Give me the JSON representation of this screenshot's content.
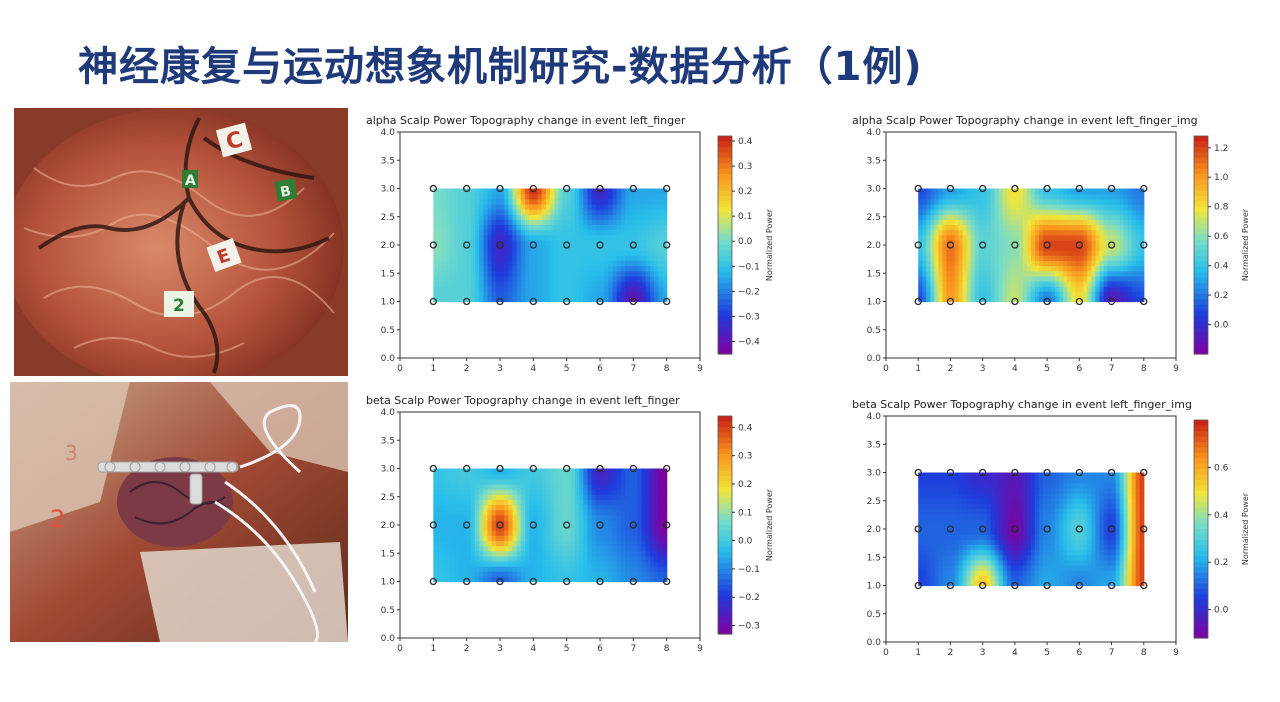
{
  "slide": {
    "title": "神经康复与运动想象机制研究-数据分析（1例)"
  },
  "photos": {
    "top": {
      "name": "brain-surface-photo",
      "labels": [
        "C",
        "A",
        "B",
        "E",
        "2"
      ]
    },
    "bottom": {
      "name": "electrode-grid-photo",
      "labels": [
        "2",
        "3"
      ]
    }
  },
  "colors": {
    "title": "#1f3a7a",
    "electrode_marker": "#2b2b2b",
    "colormap": "jet"
  },
  "chart_data": [
    {
      "type": "heatmap",
      "title": "alpha Scalp Power Topography change in event left_finger",
      "xlim": [
        0,
        9
      ],
      "ylim": [
        0,
        4
      ],
      "xticks": [
        "0",
        "1",
        "2",
        "3",
        "4",
        "5",
        "6",
        "7",
        "8",
        "9"
      ],
      "yticks": [
        "0.0",
        "0.5",
        "1.0",
        "1.5",
        "2.0",
        "2.5",
        "3.0",
        "3.5",
        "4.0"
      ],
      "electrodes": {
        "x": [
          1,
          2,
          3,
          4,
          5,
          6,
          7,
          8
        ],
        "y": [
          1,
          2,
          3
        ]
      },
      "colorbar": {
        "label": "Normalized Power",
        "range": [
          -0.45,
          0.42
        ],
        "ticks": [
          "0.4",
          "0.3",
          "0.2",
          "0.1",
          "0.0",
          "-0.1",
          "-0.2",
          "-0.3",
          "-0.4"
        ]
      },
      "values": [
        [
          -0.05,
          -0.05,
          -0.25,
          -0.15,
          -0.1,
          -0.15,
          -0.4,
          -0.15
        ],
        [
          0.02,
          -0.05,
          -0.35,
          -0.15,
          -0.1,
          -0.1,
          -0.1,
          -0.05
        ],
        [
          0.0,
          -0.05,
          -0.15,
          0.4,
          -0.05,
          -0.35,
          -0.15,
          -0.15
        ]
      ]
    },
    {
      "type": "heatmap",
      "title": "alpha Scalp Power Topography change in event left_finger_img",
      "xlim": [
        0,
        9
      ],
      "ylim": [
        0,
        4
      ],
      "xticks": [
        "0",
        "1",
        "2",
        "3",
        "4",
        "5",
        "6",
        "7",
        "8",
        "9"
      ],
      "yticks": [
        "0.0",
        "0.5",
        "1.0",
        "1.5",
        "2.0",
        "2.5",
        "3.0",
        "3.5",
        "4.0"
      ],
      "electrodes": {
        "x": [
          1,
          2,
          3,
          4,
          5,
          6,
          7,
          8
        ],
        "y": [
          1,
          2,
          3
        ]
      },
      "colorbar": {
        "label": "Normalized Power",
        "range": [
          -0.2,
          1.28
        ],
        "ticks": [
          "1.2",
          "1.0",
          "0.8",
          "0.6",
          "0.4",
          "0.2",
          "0.0"
        ]
      },
      "values": [
        [
          0.1,
          1.0,
          0.4,
          0.7,
          0.2,
          0.8,
          -0.1,
          0.1
        ],
        [
          0.4,
          1.1,
          0.5,
          0.6,
          1.2,
          1.2,
          0.7,
          0.4
        ],
        [
          0.1,
          0.3,
          0.4,
          0.8,
          0.4,
          0.3,
          0.3,
          0.2
        ]
      ]
    },
    {
      "type": "heatmap",
      "title": "beta Scalp Power Topography change in event left_finger",
      "xlim": [
        0,
        9
      ],
      "ylim": [
        0,
        4
      ],
      "xticks": [
        "0",
        "1",
        "2",
        "3",
        "4",
        "5",
        "6",
        "7",
        "8",
        "9"
      ],
      "yticks": [
        "0.0",
        "0.5",
        "1.0",
        "1.5",
        "2.0",
        "2.5",
        "3.0",
        "3.5",
        "4.0"
      ],
      "electrodes": {
        "x": [
          1,
          2,
          3,
          4,
          5,
          6,
          7,
          8
        ],
        "y": [
          1,
          2,
          3
        ]
      },
      "colorbar": {
        "label": "Normalized Power",
        "range": [
          -0.33,
          0.44
        ],
        "ticks": [
          "0.4",
          "0.3",
          "0.2",
          "0.1",
          "0.0",
          "-0.1",
          "-0.2",
          "-0.3"
        ]
      },
      "values": [
        [
          -0.02,
          -0.05,
          -0.15,
          -0.05,
          -0.02,
          -0.05,
          -0.1,
          -0.15
        ],
        [
          -0.05,
          -0.05,
          0.4,
          -0.05,
          0.05,
          -0.1,
          -0.15,
          -0.33
        ],
        [
          -0.02,
          0.0,
          -0.05,
          0.0,
          0.05,
          -0.25,
          -0.15,
          -0.33
        ]
      ]
    },
    {
      "type": "heatmap",
      "title": "beta Scalp Power Topography change in event left_finger_img",
      "xlim": [
        0,
        9
      ],
      "ylim": [
        0,
        4
      ],
      "xticks": [
        "0",
        "1",
        "2",
        "3",
        "4",
        "5",
        "6",
        "7",
        "8",
        "9"
      ],
      "yticks": [
        "0.0",
        "0.5",
        "1.0",
        "1.5",
        "2.0",
        "2.5",
        "3.0",
        "3.5",
        "4.0"
      ],
      "electrodes": {
        "x": [
          1,
          2,
          3,
          4,
          5,
          6,
          7,
          8
        ],
        "y": [
          1,
          2,
          3
        ]
      },
      "colorbar": {
        "label": "Normalized Power",
        "range": [
          -0.12,
          0.8
        ],
        "ticks": [
          "0.6",
          "0.4",
          "0.2",
          "0.0"
        ]
      },
      "values": [
        [
          0.05,
          0.15,
          0.55,
          0.1,
          0.2,
          0.15,
          0.2,
          0.75
        ],
        [
          0.1,
          0.1,
          0.1,
          -0.1,
          0.15,
          0.3,
          0.05,
          0.75
        ],
        [
          0.05,
          0.05,
          0.0,
          -0.05,
          0.1,
          0.15,
          0.15,
          0.75
        ]
      ]
    }
  ]
}
